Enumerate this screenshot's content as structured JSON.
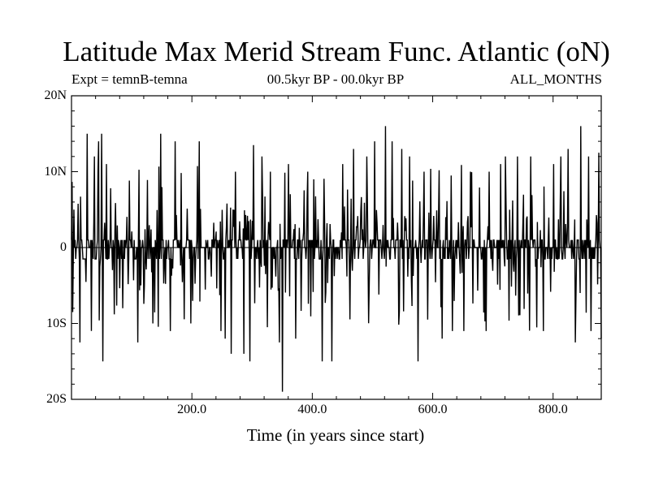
{
  "chart_data": {
    "type": "line",
    "title": "Latitude Max Merid Stream Func. Atlantic (oN)",
    "subtitle_left": "Expt = temnB-temna",
    "subtitle_center": "00.5kyr BP - 00.0kyr BP",
    "subtitle_right": "ALL_MONTHS",
    "xlabel": "Time (in years since start)",
    "ylabel": "",
    "xlim": [
      0,
      880
    ],
    "ylim": [
      -20,
      20
    ],
    "x_ticks": [
      {
        "value": 200,
        "label": "200.0"
      },
      {
        "value": 400,
        "label": "400.0"
      },
      {
        "value": 600,
        "label": "600.0"
      },
      {
        "value": 800,
        "label": "800.0"
      }
    ],
    "y_ticks": [
      {
        "value": 20,
        "label": "20N"
      },
      {
        "value": 10,
        "label": "10N"
      },
      {
        "value": 0,
        "label": "0"
      },
      {
        "value": -10,
        "label": "10S"
      },
      {
        "value": -20,
        "label": "20S"
      }
    ],
    "series": [
      {
        "name": "Latitude Max Merid Stream Func. Atlantic",
        "color": "#000000",
        "seed": 20240611,
        "n_points": 880,
        "note": "Noisy annual time series centred near 0 with spikes mostly between 15N and 15S; extreme minimum about 19S near year 350",
        "spikes": [
          {
            "x": 2,
            "y": -8.5
          },
          {
            "x": 4,
            "y": 5.0
          },
          {
            "x": 14,
            "y": -12.5
          },
          {
            "x": 26,
            "y": 15.0
          },
          {
            "x": 38,
            "y": 12.0
          },
          {
            "x": 45,
            "y": 14.0
          },
          {
            "x": 50,
            "y": 15.0
          },
          {
            "x": 52,
            "y": -15.0
          },
          {
            "x": 58,
            "y": 11.0
          },
          {
            "x": 85,
            "y": -8.0
          },
          {
            "x": 110,
            "y": -12.5
          },
          {
            "x": 135,
            "y": -10.0
          },
          {
            "x": 148,
            "y": 15.0
          },
          {
            "x": 164,
            "y": -11.0
          },
          {
            "x": 172,
            "y": 14.0
          },
          {
            "x": 198,
            "y": -10.0
          },
          {
            "x": 212,
            "y": 14.0
          },
          {
            "x": 248,
            "y": -11.0
          },
          {
            "x": 255,
            "y": -12.0
          },
          {
            "x": 265,
            "y": -14.0
          },
          {
            "x": 272,
            "y": 10.0
          },
          {
            "x": 286,
            "y": -14.0
          },
          {
            "x": 296,
            "y": -15.0
          },
          {
            "x": 302,
            "y": 13.5
          },
          {
            "x": 316,
            "y": 12.0
          },
          {
            "x": 330,
            "y": 10.0
          },
          {
            "x": 345,
            "y": -12.5
          },
          {
            "x": 350,
            "y": -19.0
          },
          {
            "x": 360,
            "y": 11.0
          },
          {
            "x": 372,
            "y": -12.0
          },
          {
            "x": 392,
            "y": 10.0
          },
          {
            "x": 402,
            "y": 9.0
          },
          {
            "x": 416,
            "y": -15.0
          },
          {
            "x": 432,
            "y": -15.0
          },
          {
            "x": 450,
            "y": 11.0
          },
          {
            "x": 468,
            "y": 13.0
          },
          {
            "x": 490,
            "y": 12.0
          },
          {
            "x": 503,
            "y": 14.0
          },
          {
            "x": 521,
            "y": 16.0
          },
          {
            "x": 532,
            "y": 14.0
          },
          {
            "x": 548,
            "y": 13.0
          },
          {
            "x": 561,
            "y": 12.0
          },
          {
            "x": 575,
            "y": -15.0
          },
          {
            "x": 585,
            "y": 10.0
          },
          {
            "x": 615,
            "y": -12.0
          },
          {
            "x": 632,
            "y": -11.0
          },
          {
            "x": 651,
            "y": -11.0
          },
          {
            "x": 662,
            "y": 10.0
          },
          {
            "x": 688,
            "y": -11.0
          },
          {
            "x": 693,
            "y": 10.0
          },
          {
            "x": 712,
            "y": 11.0
          },
          {
            "x": 720,
            "y": 12.0
          },
          {
            "x": 740,
            "y": 12.0
          },
          {
            "x": 762,
            "y": 12.0
          },
          {
            "x": 783,
            "y": -11.0
          },
          {
            "x": 800,
            "y": 11.0
          },
          {
            "x": 812,
            "y": 12.0
          },
          {
            "x": 824,
            "y": 13.0
          },
          {
            "x": 836,
            "y": -12.5
          },
          {
            "x": 845,
            "y": 16.0
          },
          {
            "x": 858,
            "y": 12.0
          },
          {
            "x": 862,
            "y": -11.0
          },
          {
            "x": 875,
            "y": 12.5
          },
          {
            "x": 879,
            "y": -12.0
          }
        ]
      }
    ],
    "grid": false,
    "legend": "none"
  }
}
